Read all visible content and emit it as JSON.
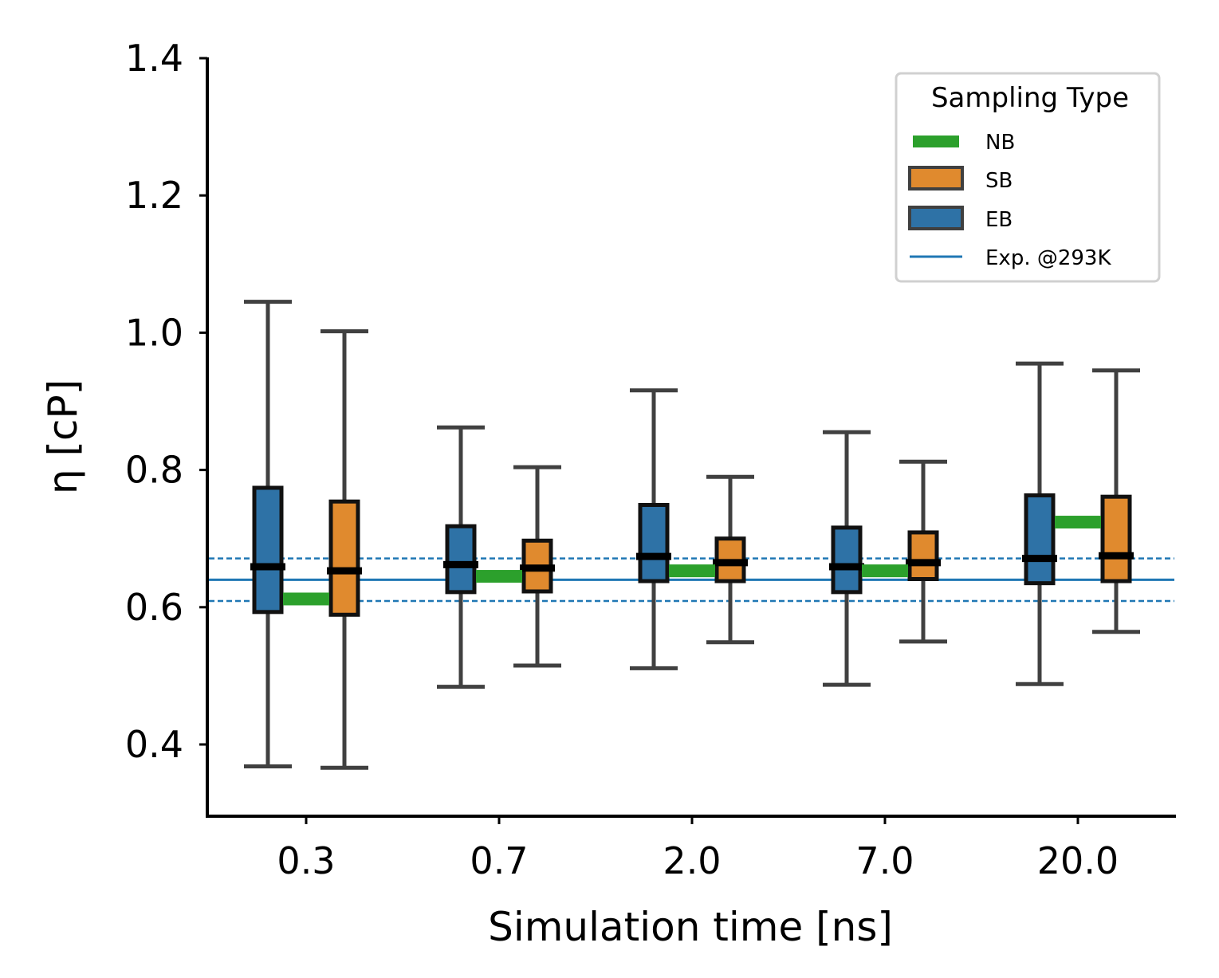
{
  "chart_data": {
    "type": "box",
    "title": "",
    "xlabel": "Simulation time [ns]",
    "ylabel": "η [cP]",
    "ylim": [
      0.3,
      1.4
    ],
    "yticks": [
      0.4,
      0.6,
      0.8,
      1.0,
      1.2,
      1.4
    ],
    "ytick_labels": [
      "0.4",
      "0.6",
      "0.8",
      "1.0",
      "1.2",
      "1.4"
    ],
    "categories": [
      "0.3",
      "0.7",
      "2.0",
      "7.0",
      "20.0"
    ],
    "legend": {
      "title": "Sampling Type",
      "placement": "top-right",
      "entries": [
        {
          "label": "NB",
          "color": "#2ca02c",
          "kind": "bar"
        },
        {
          "label": "SB",
          "color": "#e08a2e",
          "kind": "box"
        },
        {
          "label": "EB",
          "color": "#2e72a6",
          "kind": "box"
        },
        {
          "label": "Exp. @293K",
          "color": "#1f77b4",
          "kind": "line"
        }
      ]
    },
    "series": [
      {
        "name": "EB",
        "color": "#2e72a6",
        "boxes": [
          {
            "whislo": 0.368,
            "q1": 0.593,
            "med": 0.659,
            "q3": 0.774,
            "whishi": 1.045
          },
          {
            "whislo": 0.484,
            "q1": 0.622,
            "med": 0.662,
            "q3": 0.718,
            "whishi": 0.862
          },
          {
            "whislo": 0.511,
            "q1": 0.638,
            "med": 0.674,
            "q3": 0.749,
            "whishi": 0.916
          },
          {
            "whislo": 0.487,
            "q1": 0.622,
            "med": 0.659,
            "q3": 0.716,
            "whishi": 0.855
          },
          {
            "whislo": 0.488,
            "q1": 0.635,
            "med": 0.671,
            "q3": 0.763,
            "whishi": 0.955
          }
        ]
      },
      {
        "name": "SB",
        "color": "#e08a2e",
        "boxes": [
          {
            "whislo": 0.366,
            "q1": 0.589,
            "med": 0.653,
            "q3": 0.754,
            "whishi": 1.002
          },
          {
            "whislo": 0.515,
            "q1": 0.623,
            "med": 0.657,
            "q3": 0.697,
            "whishi": 0.804
          },
          {
            "whislo": 0.549,
            "q1": 0.638,
            "med": 0.665,
            "q3": 0.7,
            "whishi": 0.79
          },
          {
            "whislo": 0.55,
            "q1": 0.641,
            "med": 0.665,
            "q3": 0.709,
            "whishi": 0.812
          },
          {
            "whislo": 0.564,
            "q1": 0.638,
            "med": 0.675,
            "q3": 0.761,
            "whishi": 0.945
          }
        ]
      },
      {
        "name": "NB",
        "color": "#2ca02c",
        "values": [
          0.612,
          0.645,
          0.653,
          0.653,
          0.724
        ]
      }
    ],
    "reference": {
      "label": "Exp. @293K",
      "value": 0.64,
      "lower": 0.609,
      "upper": 0.671,
      "color": "#1f77b4"
    }
  }
}
